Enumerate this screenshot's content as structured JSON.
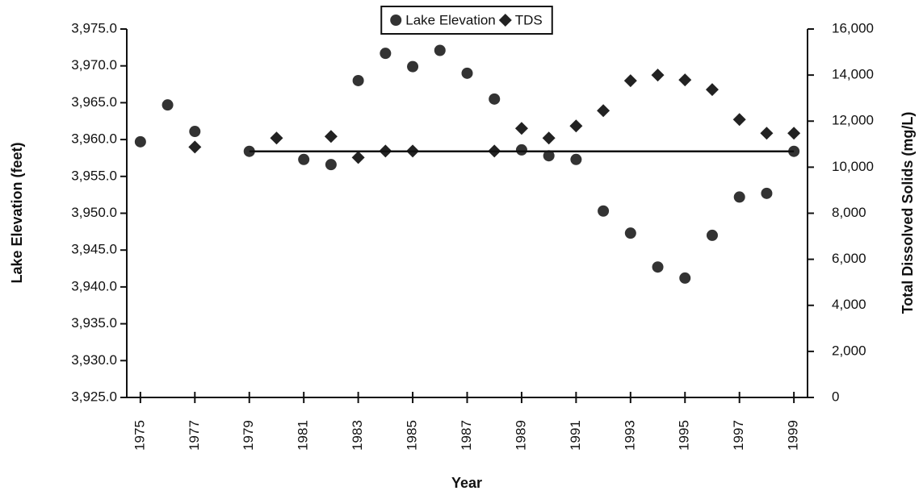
{
  "chart_data": {
    "type": "scatter",
    "legend": "top",
    "x_label": "Year",
    "y_label": "Lake Elevation (feet)",
    "y2_label": "Total Dissolved Solids (mg/L)",
    "xlim": [
      1974.5,
      1999.5
    ],
    "xticks": [
      1975,
      1977,
      1979,
      1981,
      1983,
      1985,
      1987,
      1989,
      1991,
      1993,
      1995,
      1997,
      1999
    ],
    "ylim": [
      3925,
      3975
    ],
    "yticks": [
      {
        "value": 3925,
        "label": "3,925.0"
      },
      {
        "value": 3930,
        "label": "3,930.0"
      },
      {
        "value": 3935,
        "label": "3,935.0"
      },
      {
        "value": 3940,
        "label": "3,940.0"
      },
      {
        "value": 3945,
        "label": "3,945.0"
      },
      {
        "value": 3950,
        "label": "3,950.0"
      },
      {
        "value": 3955,
        "label": "3,955.0"
      },
      {
        "value": 3960,
        "label": "3,960.0"
      },
      {
        "value": 3965,
        "label": "3,965.0"
      },
      {
        "value": 3970,
        "label": "3,970.0"
      },
      {
        "value": 3975,
        "label": "3,975.0"
      }
    ],
    "y2lim": [
      0,
      16000
    ],
    "y2ticks": [
      0,
      {
        "value": 2000,
        "label": "2,000"
      },
      {
        "value": 4000,
        "label": "4,000"
      },
      {
        "value": 6000,
        "label": "6,000"
      },
      {
        "value": 8000,
        "label": "8,000"
      },
      {
        "value": 10000,
        "label": "10,000"
      },
      {
        "value": 12000,
        "label": "12,000"
      },
      {
        "value": 14000,
        "label": "14,000"
      },
      {
        "value": 16000,
        "label": "16,000"
      }
    ],
    "series": [
      {
        "name": "Lake Elevation",
        "color": "#333333",
        "marker": "circle",
        "x": [
          1975,
          1976,
          1977,
          1979,
          1981,
          1982,
          1983,
          1984,
          1985,
          1986,
          1987,
          1988,
          1989,
          1990,
          1991,
          1992,
          1993,
          1994,
          1995,
          1996,
          1997,
          1998,
          1999
        ],
        "values": [
          3959.7,
          3964.7,
          3961.1,
          3958.4,
          3957.3,
          3956.6,
          3968.0,
          3971.7,
          3969.9,
          3972.1,
          3969.0,
          3965.5,
          3958.6,
          3957.8,
          3957.3,
          3950.3,
          3947.3,
          3942.7,
          3941.2,
          3947.0,
          3952.2,
          3952.7,
          3958.4
        ]
      },
      {
        "name": "TDS",
        "color": "#222222",
        "marker": "diamond",
        "axis": "y2",
        "x": [
          1977,
          1980,
          1982,
          1983,
          1984,
          1985,
          1988,
          1989,
          1990,
          1991,
          1992,
          1993,
          1994,
          1995,
          1996,
          1997,
          1998,
          1999
        ],
        "values": [
          10877,
          11263,
          11333,
          10421,
          10702,
          10702,
          10702,
          11684,
          11263,
          11789,
          12456,
          13754,
          14000,
          13789,
          13368,
          12070,
          11474,
          11474
        ]
      },
      {
        "color": "#111111",
        "marker": "line",
        "x": [
          1979,
          1999
        ],
        "values": [
          3958.4,
          3958.4
        ]
      }
    ]
  }
}
